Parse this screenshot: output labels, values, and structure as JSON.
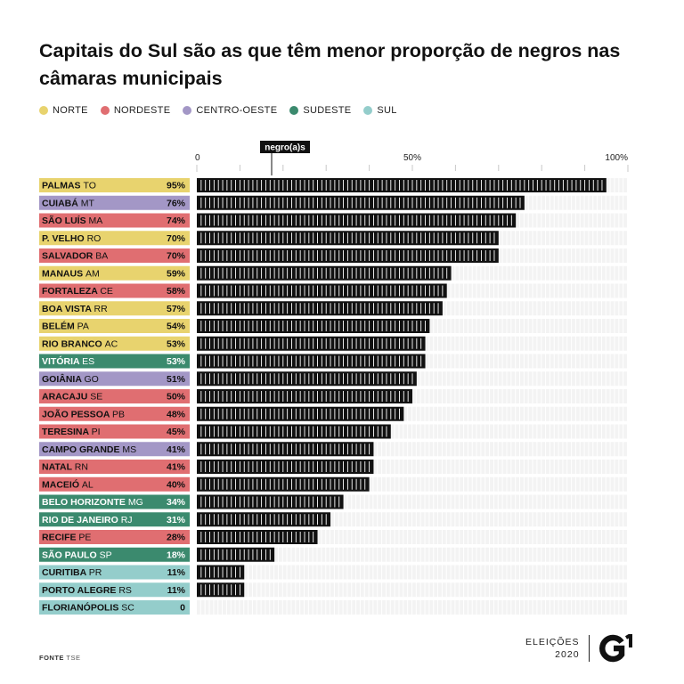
{
  "title": "Capitais do Sul são as que têm menor proporção de negros nas câmaras municipais",
  "legend": [
    {
      "label": "NORTE",
      "color": "#e8d36e"
    },
    {
      "label": "NORDESTE",
      "color": "#e06e71"
    },
    {
      "label": "CENTRO-OESTE",
      "color": "#a397c6"
    },
    {
      "label": "SUDESTE",
      "color": "#3b8a6e"
    },
    {
      "label": "SUL",
      "color": "#94cdcb"
    }
  ],
  "axis_tag": "negro(a)s",
  "source": {
    "label": "FONTE",
    "value": "TSE"
  },
  "brand": {
    "line1": "ELEIÇÕES",
    "line2": "2020"
  },
  "chart_data": {
    "type": "bar",
    "orientation": "horizontal",
    "xlim": [
      0,
      100
    ],
    "x_ticks": [
      "0",
      "50%",
      "100%"
    ],
    "categories": [
      "PALMAS TO",
      "CUIABÁ MT",
      "SÃO LUÍS MA",
      "P. VELHO RO",
      "SALVADOR BA",
      "MANAUS AM",
      "FORTALEZA CE",
      "BOA VISTA RR",
      "BELÉM PA",
      "RIO BRANCO AC",
      "VITÓRIA ES",
      "GOIÂNIA GO",
      "ARACAJU SE",
      "JOÃO PESSOA PB",
      "TERESINA PI",
      "CAMPO GRANDE MS",
      "NATAL RN",
      "MACEIÓ AL",
      "BELO HORIZONTE MG",
      "RIO DE JANEIRO RJ",
      "RECIFE PE",
      "SÃO PAULO SP",
      "CURITIBA PR",
      "PORTO ALEGRE RS",
      "FLORIANÓPOLIS SC"
    ],
    "rows": [
      {
        "city": "PALMAS",
        "state": "TO",
        "region": "NORTE",
        "value": 95,
        "label": "95%"
      },
      {
        "city": "CUIABÁ",
        "state": "MT",
        "region": "CENTRO-OESTE",
        "value": 76,
        "label": "76%"
      },
      {
        "city": "SÃO LUÍS",
        "state": "MA",
        "region": "NORDESTE",
        "value": 74,
        "label": "74%"
      },
      {
        "city": "P. VELHO",
        "state": "RO",
        "region": "NORTE",
        "value": 70,
        "label": "70%"
      },
      {
        "city": "SALVADOR",
        "state": "BA",
        "region": "NORDESTE",
        "value": 70,
        "label": "70%"
      },
      {
        "city": "MANAUS",
        "state": "AM",
        "region": "NORTE",
        "value": 59,
        "label": "59%"
      },
      {
        "city": "FORTALEZA",
        "state": "CE",
        "region": "NORDESTE",
        "value": 58,
        "label": "58%"
      },
      {
        "city": "BOA VISTA",
        "state": "RR",
        "region": "NORTE",
        "value": 57,
        "label": "57%"
      },
      {
        "city": "BELÉM",
        "state": "PA",
        "region": "NORTE",
        "value": 54,
        "label": "54%"
      },
      {
        "city": "RIO BRANCO",
        "state": "AC",
        "region": "NORTE",
        "value": 53,
        "label": "53%"
      },
      {
        "city": "VITÓRIA",
        "state": "ES",
        "region": "SUDESTE",
        "value": 53,
        "label": "53%"
      },
      {
        "city": "GOIÂNIA",
        "state": "GO",
        "region": "CENTRO-OESTE",
        "value": 51,
        "label": "51%"
      },
      {
        "city": "ARACAJU",
        "state": "SE",
        "region": "NORDESTE",
        "value": 50,
        "label": "50%"
      },
      {
        "city": "JOÃO PESSOA",
        "state": "PB",
        "region": "NORDESTE",
        "value": 48,
        "label": "48%"
      },
      {
        "city": "TERESINA",
        "state": "PI",
        "region": "NORDESTE",
        "value": 45,
        "label": "45%"
      },
      {
        "city": "CAMPO GRANDE",
        "state": "MS",
        "region": "CENTRO-OESTE",
        "value": 41,
        "label": "41%"
      },
      {
        "city": "NATAL",
        "state": "RN",
        "region": "NORDESTE",
        "value": 41,
        "label": "41%"
      },
      {
        "city": "MACEIÓ",
        "state": "AL",
        "region": "NORDESTE",
        "value": 40,
        "label": "40%"
      },
      {
        "city": "BELO HORIZONTE",
        "state": "MG",
        "region": "SUDESTE",
        "value": 34,
        "label": "34%"
      },
      {
        "city": "RIO DE JANEIRO",
        "state": "RJ",
        "region": "SUDESTE",
        "value": 31,
        "label": "31%"
      },
      {
        "city": "RECIFE",
        "state": "PE",
        "region": "NORDESTE",
        "value": 28,
        "label": "28%"
      },
      {
        "city": "SÃO PAULO",
        "state": "SP",
        "region": "SUDESTE",
        "value": 18,
        "label": "18%"
      },
      {
        "city": "CURITIBA",
        "state": "PR",
        "region": "SUL",
        "value": 11,
        "label": "11%"
      },
      {
        "city": "PORTO ALEGRE",
        "state": "RS",
        "region": "SUL",
        "value": 11,
        "label": "11%"
      },
      {
        "city": "FLORIANÓPOLIS",
        "state": "SC",
        "region": "SUL",
        "value": 0,
        "label": "0"
      }
    ]
  }
}
